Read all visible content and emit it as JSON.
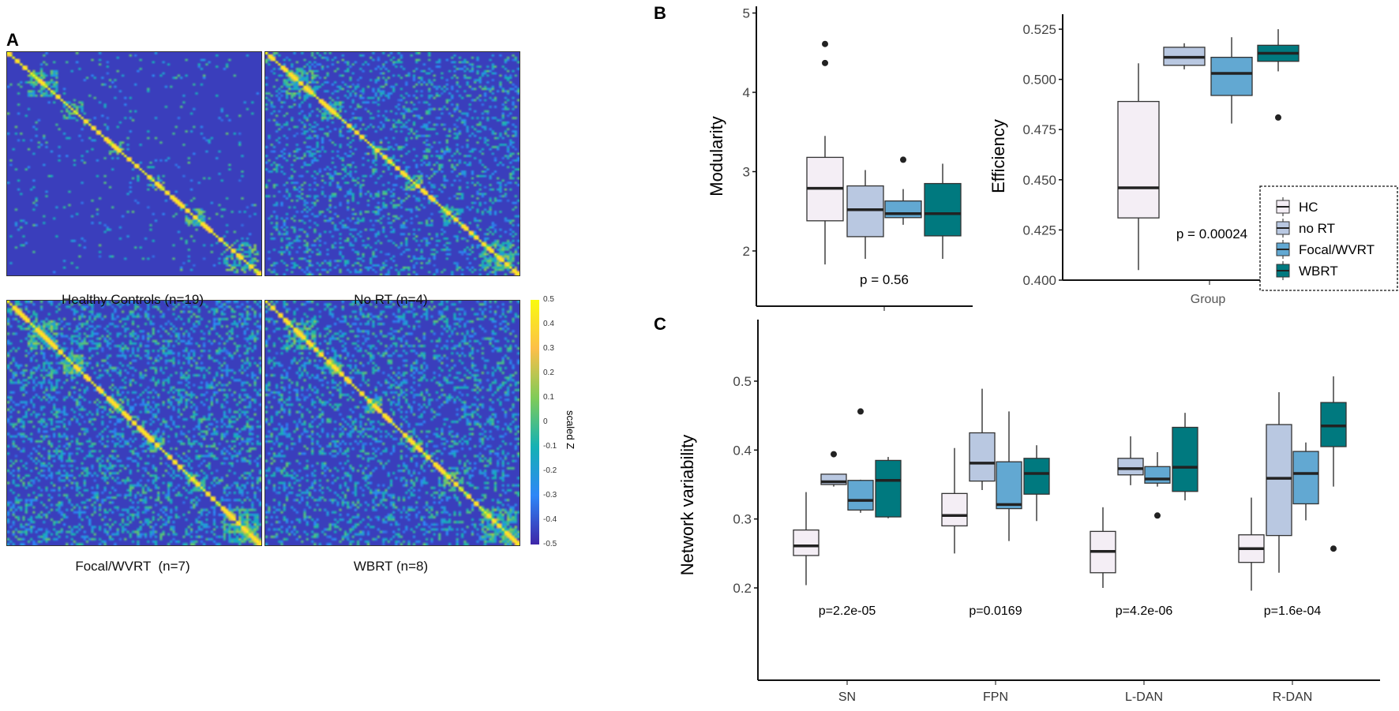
{
  "panels": {
    "a": "A",
    "b": "B",
    "c": "C"
  },
  "heatmaps": [
    {
      "caption": "Healthy Controls (n=19)"
    },
    {
      "caption": "No RT (n=4)"
    },
    {
      "caption": "Focal/WVRT  (n=7)"
    },
    {
      "caption": "WBRT (n=8)"
    }
  ],
  "colorbar": {
    "label": "scaled Z",
    "ticks": [
      "0.5",
      "0.4",
      "0.3",
      "0.2",
      "0.1",
      "0",
      "-0.1",
      "-0.2",
      "-0.3",
      "-0.4",
      "-0.5"
    ],
    "range": [
      -0.5,
      0.5
    ]
  },
  "groups": [
    {
      "name": "HC",
      "color": "#f4eef5"
    },
    {
      "name": "no RT",
      "color": "#b9c8e1"
    },
    {
      "name": "Focal/WVRT",
      "color": "#62a8d2"
    },
    {
      "name": "WBRT",
      "color": "#00797f"
    }
  ],
  "chart_data": [
    {
      "type": "box",
      "title": "Modularity",
      "ylabel": "Modularity",
      "ylim": [
        1.55,
        5.05
      ],
      "yticks": [
        "2",
        "3",
        "4",
        "5"
      ],
      "p_label": "p = 0.56",
      "boxes": [
        {
          "group": "HC",
          "min": 1.83,
          "q1": 2.38,
          "median": 2.79,
          "q3": 3.18,
          "max": 3.45,
          "outliers": [
            4.37,
            4.61
          ]
        },
        {
          "group": "no RT",
          "min": 1.9,
          "q1": 2.18,
          "median": 2.52,
          "q3": 2.82,
          "max": 3.02,
          "outliers": []
        },
        {
          "group": "Focal/WVRT",
          "min": 2.33,
          "q1": 2.42,
          "median": 2.47,
          "q3": 2.63,
          "max": 2.78,
          "outliers": [
            3.15
          ]
        },
        {
          "group": "WBRT",
          "min": 1.9,
          "q1": 2.19,
          "median": 2.47,
          "q3": 2.85,
          "max": 3.1,
          "outliers": []
        }
      ]
    },
    {
      "type": "box",
      "title": "Efficiency",
      "ylabel": "Efficiency",
      "xlabel": "Group",
      "ylim": [
        0.4,
        0.531
      ],
      "yticks": [
        "0.400",
        "0.425",
        "0.450",
        "0.475",
        "0.500",
        "0.525"
      ],
      "p_label": "p = 0.00024",
      "legend": "right",
      "boxes": [
        {
          "group": "HC",
          "min": 0.405,
          "q1": 0.431,
          "median": 0.446,
          "q3": 0.489,
          "max": 0.508,
          "outliers": []
        },
        {
          "group": "no RT",
          "min": 0.505,
          "q1": 0.507,
          "median": 0.511,
          "q3": 0.516,
          "max": 0.518,
          "outliers": []
        },
        {
          "group": "Focal/WVRT",
          "min": 0.478,
          "q1": 0.492,
          "median": 0.503,
          "q3": 0.511,
          "max": 0.521,
          "outliers": []
        },
        {
          "group": "WBRT",
          "min": 0.504,
          "q1": 0.509,
          "median": 0.513,
          "q3": 0.517,
          "max": 0.525,
          "outliers": [
            0.481
          ]
        }
      ]
    },
    {
      "type": "box",
      "ylabel": "Network variability",
      "ylim": [
        0.165,
        0.524
      ],
      "yticks": [
        "0.2",
        "0.3",
        "0.4",
        "0.5"
      ],
      "categories": [
        {
          "name": "SN",
          "p_label": "p=2.2e-05",
          "boxes": [
            {
              "group": "HC",
              "min": 0.204,
              "q1": 0.247,
              "median": 0.261,
              "q3": 0.284,
              "max": 0.339,
              "outliers": []
            },
            {
              "group": "no RT",
              "min": 0.347,
              "q1": 0.35,
              "median": 0.354,
              "q3": 0.365,
              "max": 0.365,
              "outliers": [
                0.394
              ]
            },
            {
              "group": "Focal/WVRT",
              "min": 0.309,
              "q1": 0.313,
              "median": 0.327,
              "q3": 0.356,
              "max": 0.357,
              "outliers": [
                0.456
              ]
            },
            {
              "group": "WBRT",
              "min": 0.301,
              "q1": 0.303,
              "median": 0.356,
              "q3": 0.385,
              "max": 0.39,
              "outliers": []
            }
          ]
        },
        {
          "name": "FPN",
          "p_label": "p=0.0169",
          "boxes": [
            {
              "group": "HC",
              "min": 0.25,
              "q1": 0.29,
              "median": 0.305,
              "q3": 0.337,
              "max": 0.403,
              "outliers": []
            },
            {
              "group": "no RT",
              "min": 0.342,
              "q1": 0.355,
              "median": 0.381,
              "q3": 0.425,
              "max": 0.489,
              "outliers": []
            },
            {
              "group": "Focal/WVRT",
              "min": 0.268,
              "q1": 0.315,
              "median": 0.321,
              "q3": 0.383,
              "max": 0.456,
              "outliers": []
            },
            {
              "group": "WBRT",
              "min": 0.297,
              "q1": 0.336,
              "median": 0.366,
              "q3": 0.388,
              "max": 0.407,
              "outliers": []
            }
          ]
        },
        {
          "name": "L-DAN",
          "p_label": "p=4.2e-06",
          "boxes": [
            {
              "group": "HC",
              "min": 0.2,
              "q1": 0.222,
              "median": 0.253,
              "q3": 0.282,
              "max": 0.317,
              "outliers": []
            },
            {
              "group": "no RT",
              "min": 0.349,
              "q1": 0.364,
              "median": 0.373,
              "q3": 0.388,
              "max": 0.42,
              "outliers": []
            },
            {
              "group": "Focal/WVRT",
              "min": 0.347,
              "q1": 0.352,
              "median": 0.358,
              "q3": 0.376,
              "max": 0.397,
              "outliers": [
                0.305
              ]
            },
            {
              "group": "WBRT",
              "min": 0.327,
              "q1": 0.34,
              "median": 0.375,
              "q3": 0.433,
              "max": 0.454,
              "outliers": []
            }
          ]
        },
        {
          "name": "R-DAN",
          "p_label": "p=1.6e-04",
          "boxes": [
            {
              "group": "HC",
              "min": 0.196,
              "q1": 0.237,
              "median": 0.257,
              "q3": 0.277,
              "max": 0.331,
              "outliers": []
            },
            {
              "group": "no RT",
              "min": 0.222,
              "q1": 0.276,
              "median": 0.359,
              "q3": 0.437,
              "max": 0.484,
              "outliers": []
            },
            {
              "group": "Focal/WVRT",
              "min": 0.298,
              "q1": 0.322,
              "median": 0.366,
              "q3": 0.398,
              "max": 0.411,
              "outliers": []
            },
            {
              "group": "WBRT",
              "min": 0.347,
              "q1": 0.405,
              "median": 0.435,
              "q3": 0.469,
              "max": 0.507,
              "outliers": [
                0.257
              ]
            }
          ]
        }
      ]
    }
  ]
}
